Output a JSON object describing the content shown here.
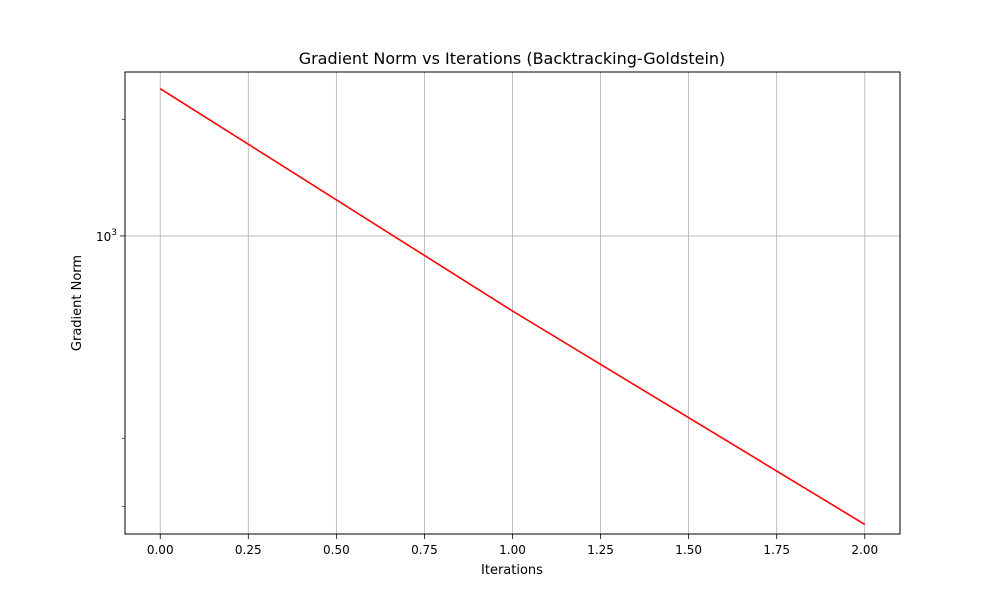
{
  "chart_data": {
    "type": "line",
    "title": "Gradient Norm vs Iterations (Backtracking-Goldstein)",
    "xlabel": "Iterations",
    "ylabel": "Gradient Norm",
    "xscale": "linear",
    "yscale": "log",
    "xlim": [
      -0.1,
      2.1
    ],
    "ylim": [
      170,
      2650
    ],
    "grid": true,
    "x_ticks": [
      0.0,
      0.25,
      0.5,
      0.75,
      1.0,
      1.25,
      1.5,
      1.75,
      2.0
    ],
    "x_tick_labels": [
      "0.00",
      "0.25",
      "0.50",
      "0.75",
      "1.00",
      "1.25",
      "1.50",
      "1.75",
      "2.00"
    ],
    "y_major_ticks": [
      1000
    ],
    "y_major_tick_base": "10",
    "y_major_tick_exponent": "3",
    "y_minor_ticks": [
      200,
      300,
      2000
    ],
    "series": [
      {
        "color": "#ff0000",
        "x": [
          0,
          1,
          2
        ],
        "y": [
          2400,
          640,
          180
        ]
      }
    ]
  }
}
